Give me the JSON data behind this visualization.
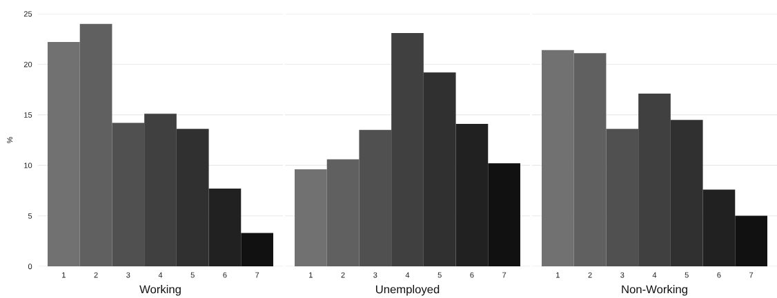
{
  "chart_data": [
    {
      "type": "bar",
      "categories": [
        "1",
        "2",
        "3",
        "4",
        "5",
        "6",
        "7"
      ],
      "values": [
        22.2,
        24.0,
        14.2,
        15.1,
        13.6,
        7.7,
        3.3
      ],
      "colors": [
        "#717171",
        "#606060",
        "#505050",
        "#404040",
        "#303030",
        "#212121",
        "#111111"
      ],
      "xlabel": "Working",
      "ylabel": "%",
      "ylim": [
        0,
        25
      ],
      "yticks": [
        0,
        5,
        10,
        15,
        20,
        25
      ],
      "grid": "y"
    },
    {
      "type": "bar",
      "categories": [
        "1",
        "2",
        "3",
        "4",
        "5",
        "6",
        "7"
      ],
      "values": [
        9.6,
        10.6,
        13.5,
        23.1,
        19.2,
        14.1,
        10.2
      ],
      "colors": [
        "#717171",
        "#606060",
        "#505050",
        "#404040",
        "#303030",
        "#212121",
        "#111111"
      ],
      "xlabel": "Unemployed",
      "ylim": [
        0,
        25
      ],
      "yticks": [
        0,
        5,
        10,
        15,
        20,
        25
      ],
      "grid": "y",
      "tick_labels": "x"
    },
    {
      "type": "bar",
      "categories": [
        "1",
        "2",
        "3",
        "4",
        "5",
        "6",
        "7"
      ],
      "values": [
        21.4,
        21.1,
        13.6,
        17.1,
        14.5,
        7.6,
        5.0
      ],
      "colors": [
        "#717171",
        "#606060",
        "#505050",
        "#404040",
        "#303030",
        "#212121",
        "#111111"
      ],
      "xlabel": "Non-Working",
      "ylim": [
        0,
        25
      ],
      "yticks": [
        0,
        5,
        10,
        15,
        20,
        25
      ],
      "grid": "y",
      "tick_labels": "x"
    }
  ]
}
